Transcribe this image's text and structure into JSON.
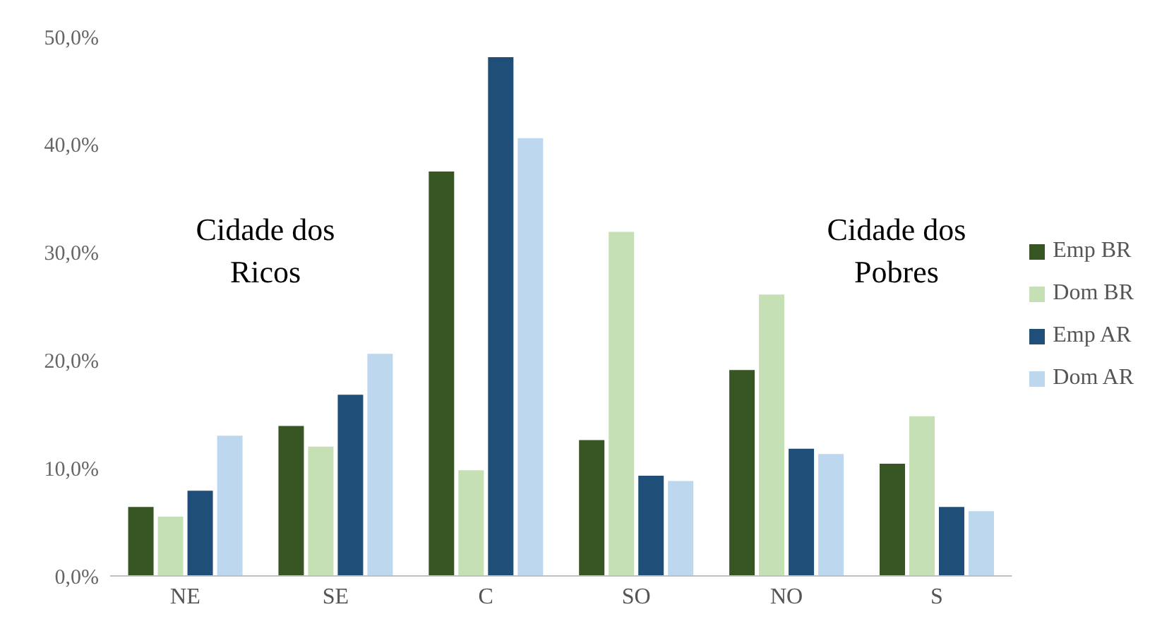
{
  "chart_data": {
    "type": "bar",
    "categories": [
      "NE",
      "SE",
      "C",
      "SO",
      "NO",
      "S"
    ],
    "series": [
      {
        "name": "Emp BR",
        "color": "#375623",
        "values": [
          6.4,
          13.9,
          37.5,
          12.6,
          19.1,
          10.4
        ]
      },
      {
        "name": "Dom BR",
        "color": "#c5e0b4",
        "values": [
          5.5,
          12.0,
          9.8,
          31.9,
          26.1,
          14.8
        ]
      },
      {
        "name": "Emp AR",
        "color": "#1f4e79",
        "values": [
          7.9,
          16.8,
          48.1,
          9.3,
          11.8,
          6.4
        ]
      },
      {
        "name": "Dom AR",
        "color": "#bdd7ee",
        "values": [
          13.0,
          20.6,
          40.6,
          8.8,
          11.3,
          6.0
        ]
      }
    ],
    "ylim": [
      0,
      50
    ],
    "yticks": [
      {
        "value": 0,
        "label": "0,0%"
      },
      {
        "value": 10,
        "label": "10,0%"
      },
      {
        "value": 20,
        "label": "20,0%"
      },
      {
        "value": 30,
        "label": "30,0%"
      },
      {
        "value": 40,
        "label": "40,0%"
      },
      {
        "value": 50,
        "label": "50,0%"
      }
    ],
    "annotations": [
      "Cidade dos Ricos",
      "Cidade dos Pobres"
    ],
    "grid": false,
    "legend": "right"
  }
}
